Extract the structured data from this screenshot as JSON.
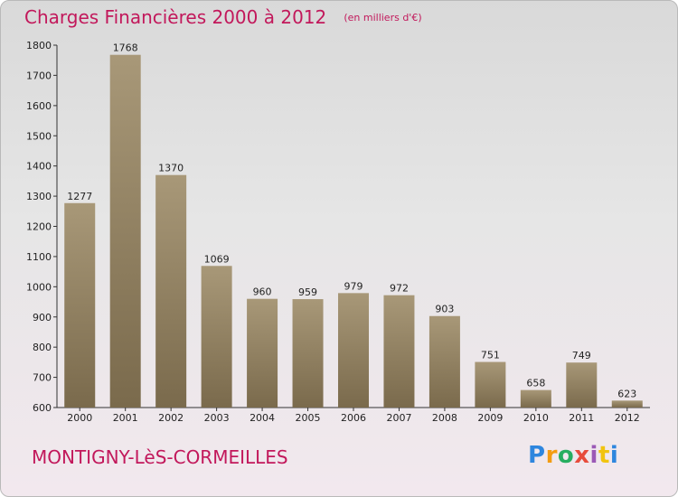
{
  "title": "Charges Financières 2000 à 2012",
  "unit": "(en milliers d'€)",
  "city": "MONTIGNY-LèS-CORMEILLES",
  "logo": {
    "letters": [
      "P",
      "r",
      "o",
      "x",
      "i",
      "t",
      "i"
    ],
    "colors": [
      "#2e86de",
      "#f39c12",
      "#27ae60",
      "#e74c3c",
      "#9b59b6",
      "#f1c40f",
      "#2e86de"
    ]
  },
  "colors": {
    "title": "#c2185b",
    "bar_light": "#a89878",
    "bar_dark": "#7a6a4c"
  },
  "chart_data": {
    "type": "bar",
    "categories": [
      "2000",
      "2001",
      "2002",
      "2003",
      "2004",
      "2005",
      "2006",
      "2007",
      "2008",
      "2009",
      "2010",
      "2011",
      "2012"
    ],
    "values": [
      1277,
      1768,
      1370,
      1069,
      960,
      959,
      979,
      972,
      903,
      751,
      658,
      749,
      623
    ],
    "ylim": [
      600,
      1800
    ],
    "yticks": [
      600,
      700,
      800,
      900,
      1000,
      1100,
      1200,
      1300,
      1400,
      1500,
      1600,
      1700,
      1800
    ],
    "grid": "none",
    "data_labels": true
  }
}
